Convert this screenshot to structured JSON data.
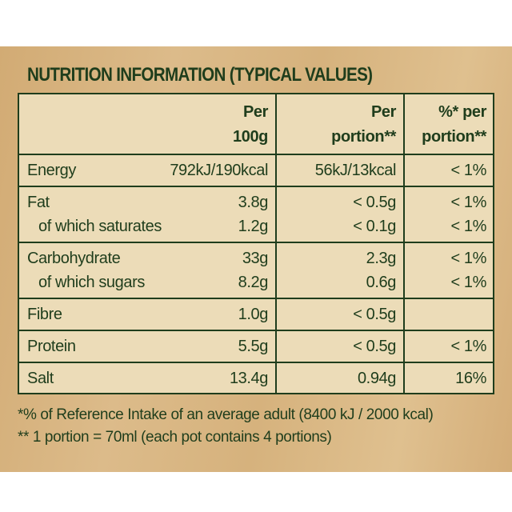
{
  "title": "NUTRITION INFORMATION (TYPICAL VALUES)",
  "table": {
    "headers": [
      [
        "Per",
        "100g"
      ],
      [
        "Per",
        "portion**"
      ],
      [
        "%* per",
        "portion**"
      ]
    ],
    "groups": [
      [
        [
          "Energy",
          "792kJ/190kcal",
          "56kJ/13kcal",
          "< 1%"
        ]
      ],
      [
        [
          "Fat",
          "3.8g",
          "< 0.5g",
          "< 1%"
        ],
        [
          "of which saturates",
          "1.2g",
          "< 0.1g",
          "< 1%"
        ]
      ],
      [
        [
          "Carbohydrate",
          "33g",
          "2.3g",
          "< 1%"
        ],
        [
          "of which sugars",
          "8.2g",
          "0.6g",
          "< 1%"
        ]
      ],
      [
        [
          "Fibre",
          "1.0g",
          "< 0.5g",
          null
        ]
      ],
      [
        [
          "Protein",
          "5.5g",
          "< 0.5g",
          "< 1%"
        ]
      ],
      [
        [
          "Salt",
          "13.4g",
          "0.94g",
          "16%"
        ]
      ]
    ]
  },
  "footnotes": [
    "*% of Reference Intake of an average adult (8400 kJ / 2000 kcal)",
    "** 1 portion = 70ml (each pot contains 4 portions)"
  ]
}
